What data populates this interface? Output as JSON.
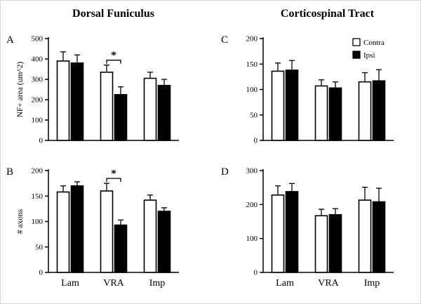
{
  "titles": {
    "left": "Dorsal Funiculus",
    "right": "Corticospinal Tract"
  },
  "colors": {
    "bar_outline": "#000000",
    "contra_fill": "#ffffff",
    "ipsi_fill": "#000000"
  },
  "chart_data": [
    {
      "panel": "A",
      "type": "bar",
      "ylabel": "NF+ area (um^2)",
      "ylim": [
        0,
        500
      ],
      "yticks": [
        0,
        100,
        200,
        300,
        400,
        500
      ],
      "categories": [
        "Lam",
        "VRA",
        "Imp"
      ],
      "show_xlabels": false,
      "legend": false,
      "series": [
        {
          "name": "Contra",
          "values": [
            390,
            335,
            305
          ],
          "errors": [
            45,
            35,
            30
          ]
        },
        {
          "name": "Ipsi",
          "values": [
            380,
            225,
            270
          ],
          "errors": [
            40,
            38,
            30
          ]
        }
      ],
      "significance": [
        {
          "category_index": 1,
          "label": "*"
        }
      ]
    },
    {
      "panel": "B",
      "type": "bar",
      "ylabel": "# axons",
      "ylim": [
        0,
        200
      ],
      "yticks": [
        0,
        50,
        100,
        150,
        200
      ],
      "categories": [
        "Lam",
        "VRA",
        "Imp"
      ],
      "show_xlabels": true,
      "legend": false,
      "series": [
        {
          "name": "Contra",
          "values": [
            158,
            160,
            142
          ],
          "errors": [
            12,
            15,
            10
          ]
        },
        {
          "name": "Ipsi",
          "values": [
            170,
            93,
            120
          ],
          "errors": [
            8,
            10,
            7
          ]
        }
      ],
      "significance": [
        {
          "category_index": 1,
          "label": "*"
        }
      ]
    },
    {
      "panel": "C",
      "type": "bar",
      "ylabel": "",
      "ylim": [
        0,
        200
      ],
      "yticks": [
        0,
        50,
        100,
        150,
        200
      ],
      "categories": [
        "Lam",
        "VRA",
        "Imp"
      ],
      "show_xlabels": false,
      "legend": true,
      "series": [
        {
          "name": "Contra",
          "values": [
            136,
            107,
            115
          ],
          "errors": [
            16,
            12,
            18
          ]
        },
        {
          "name": "Ipsi",
          "values": [
            138,
            103,
            117
          ],
          "errors": [
            19,
            12,
            22
          ]
        }
      ],
      "significance": []
    },
    {
      "panel": "D",
      "type": "bar",
      "ylabel": "",
      "ylim": [
        0,
        300
      ],
      "yticks": [
        0,
        100,
        200,
        300
      ],
      "categories": [
        "Lam",
        "VRA",
        "Imp"
      ],
      "show_xlabels": true,
      "legend": false,
      "series": [
        {
          "name": "Contra",
          "values": [
            228,
            167,
            213
          ],
          "errors": [
            27,
            19,
            38
          ]
        },
        {
          "name": "Ipsi",
          "values": [
            238,
            170,
            208
          ],
          "errors": [
            24,
            18,
            40
          ]
        }
      ],
      "significance": []
    }
  ]
}
